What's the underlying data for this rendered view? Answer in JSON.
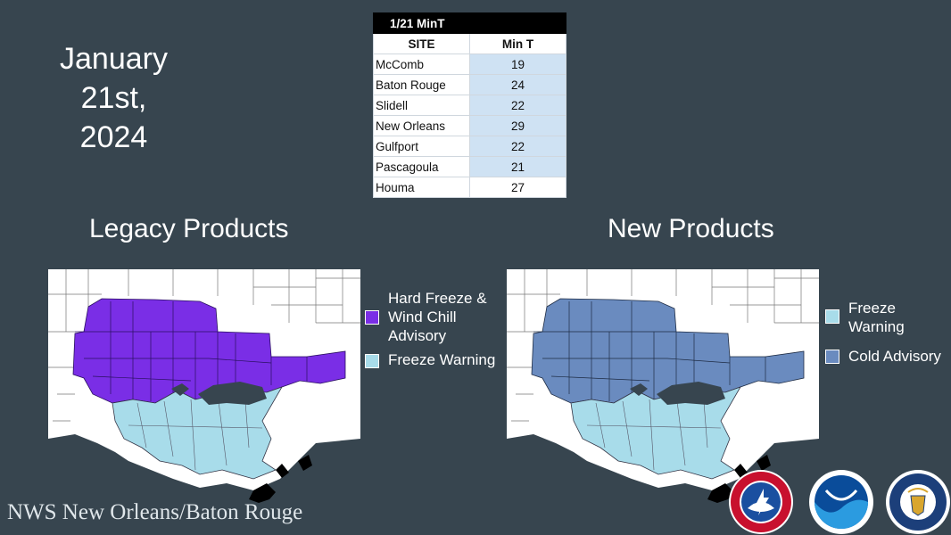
{
  "date_title": [
    "January",
    "21st,",
    "2024"
  ],
  "table": {
    "title": "1/21 MinT",
    "headers": [
      "SITE",
      "Min T"
    ],
    "rows": [
      {
        "site": "McComb",
        "min_t": "19"
      },
      {
        "site": "Baton Rouge",
        "min_t": "24"
      },
      {
        "site": "Slidell",
        "min_t": "22"
      },
      {
        "site": "New Orleans",
        "min_t": "29"
      },
      {
        "site": "Gulfport",
        "min_t": "22"
      },
      {
        "site": "Pascagoula",
        "min_t": "21"
      },
      {
        "site": "Houma",
        "min_t": "27"
      }
    ]
  },
  "legacy": {
    "title": "Legacy Products",
    "legend": [
      {
        "label": "Hard Freeze & Wind Chill Advisory",
        "color": "#7a2ee6"
      },
      {
        "label": "Freeze Warning",
        "color": "#a8dcea"
      }
    ]
  },
  "new": {
    "title": "New Products",
    "legend": [
      {
        "label": "Freeze Warning",
        "color": "#a8dcea"
      },
      {
        "label": "Cold Advisory",
        "color": "#6a8bbf"
      }
    ]
  },
  "colors": {
    "background": "#37454f",
    "water": "#37454f",
    "land": "#ffffff"
  },
  "footer": "NWS New Orleans/Baton Rouge",
  "logos": [
    "nws-logo",
    "noaa-logo",
    "commerce-seal"
  ]
}
